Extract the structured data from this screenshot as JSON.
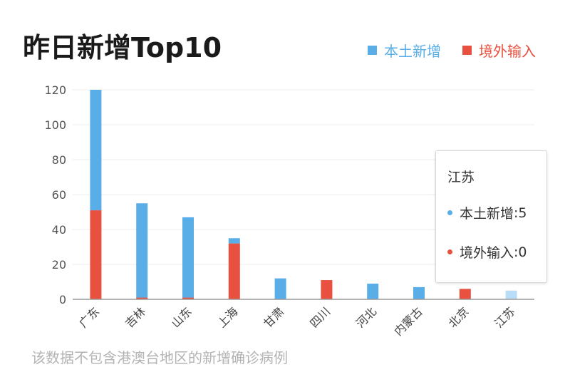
{
  "header": {
    "title": "昨日新增Top10"
  },
  "legend": [
    {
      "label": "本土新增",
      "color": "#5aaee8"
    },
    {
      "label": "境外输入",
      "color": "#e8513f"
    }
  ],
  "chart_data": {
    "type": "bar",
    "stacked": true,
    "categories": [
      "广东",
      "吉林",
      "山东",
      "上海",
      "甘肃",
      "四川",
      "河北",
      "内蒙古",
      "北京",
      "江苏"
    ],
    "series": [
      {
        "name": "境外输入",
        "color": "#e8513f",
        "values": [
          51,
          1,
          1,
          32,
          0,
          11,
          0,
          0,
          6,
          0
        ]
      },
      {
        "name": "本土新增",
        "color": "#5aaee8",
        "values": [
          69,
          54,
          46,
          3,
          12,
          0,
          9,
          7,
          0,
          5
        ]
      }
    ],
    "ylim": [
      0,
      120
    ],
    "yticks": [
      0,
      20,
      40,
      60,
      80,
      100,
      120
    ],
    "grid": true,
    "highlighted_category": "江苏",
    "highlight_color": "#b9ddf6"
  },
  "tooltip": {
    "title": "江苏",
    "rows": [
      {
        "label": "本土新增",
        "value": "5",
        "color": "#5aaee8"
      },
      {
        "label": "境外输入",
        "value": "0",
        "color": "#e8513f"
      }
    ]
  },
  "footnote": "该数据不包含港澳台地区的新增确诊病例"
}
